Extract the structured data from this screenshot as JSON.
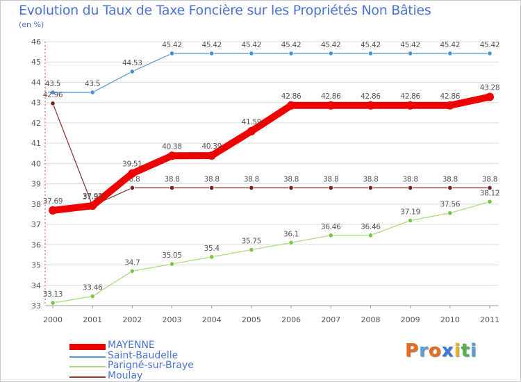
{
  "title": "Evolution du Taux de Taxe Foncière sur les Propriétés Non Bâties",
  "unit_label": "(en %)",
  "logo": {
    "letters": [
      "P",
      "r",
      "o",
      "x",
      "i",
      "t",
      "i"
    ],
    "colors": [
      "#e86d1f",
      "#5aa0d8",
      "#e86d1f",
      "#3b7ad9",
      "#e8b51f",
      "#55b04a",
      "#5aa0d8"
    ]
  },
  "chart_data": {
    "type": "line",
    "title": "Evolution du Taux de Taxe Foncière sur les Propriétés Non Bâties",
    "ylabel": "(en %)",
    "xlabel": "",
    "ylim": [
      33,
      46
    ],
    "yticks": [
      "33",
      "34",
      "35",
      "36",
      "37",
      "38",
      "39",
      "40",
      "41",
      "42",
      "43",
      "44",
      "45",
      "46"
    ],
    "categories": [
      "2000",
      "2001",
      "2002",
      "2003",
      "2004",
      "2005",
      "2006",
      "2007",
      "2008",
      "2009",
      "2010",
      "2011"
    ],
    "series": [
      {
        "name": "Saint-Baudelle",
        "color": "#5b9bd5",
        "dot": "#4a8fd0",
        "style": "thin",
        "values": [
          43.5,
          43.5,
          44.53,
          45.42,
          45.42,
          45.42,
          45.42,
          45.42,
          45.42,
          45.42,
          45.42,
          45.42
        ],
        "labels": [
          "43.5",
          "43.5",
          "44.53",
          "45.42",
          "45.42",
          "45.42",
          "45.42",
          "45.42",
          "45.42",
          "45.42",
          "45.42",
          "45.42"
        ]
      },
      {
        "name": "Moulay",
        "color": "#8b3a3a",
        "dot": "#7a1f1f",
        "style": "thin",
        "values": [
          42.96,
          37.92,
          38.8,
          38.8,
          38.8,
          38.8,
          38.8,
          38.8,
          38.8,
          38.8,
          38.8,
          38.8
        ],
        "labels": [
          "42.96",
          "37.92",
          "38.8",
          "38.8",
          "38.8",
          "38.8",
          "38.8",
          "38.8",
          "38.8",
          "38.8",
          "38.8",
          "38.8"
        ]
      },
      {
        "name": "Parigné-sur-Braye",
        "color": "#a8dc80",
        "dot": "#7cc34a",
        "style": "thin",
        "values": [
          33.13,
          33.46,
          34.7,
          35.05,
          35.4,
          35.75,
          36.1,
          36.46,
          36.46,
          37.19,
          37.56,
          38.12
        ],
        "labels": [
          "33.13",
          "33.46",
          "34.7",
          "35.05",
          "35.4",
          "35.75",
          "36.1",
          "36.46",
          "36.46",
          "37.19",
          "37.56",
          "38.12"
        ]
      },
      {
        "name": "MAYENNE",
        "color": "#ee0000",
        "dot": "#ee0000",
        "style": "thick",
        "values": [
          37.69,
          37.92,
          39.51,
          40.38,
          40.39,
          41.59,
          42.86,
          42.86,
          42.86,
          42.86,
          42.86,
          43.28
        ],
        "labels": [
          "37.69",
          "37.92",
          "39.51",
          "40.38",
          "40.39",
          "41.59",
          "42.86",
          "42.86",
          "42.86",
          "42.86",
          "42.86",
          "43.28"
        ]
      }
    ],
    "legend": [
      "MAYENNE",
      "Saint-Baudelle",
      "Parigné-sur-Braye",
      "Moulay"
    ],
    "legend_position": "bottom-left"
  }
}
